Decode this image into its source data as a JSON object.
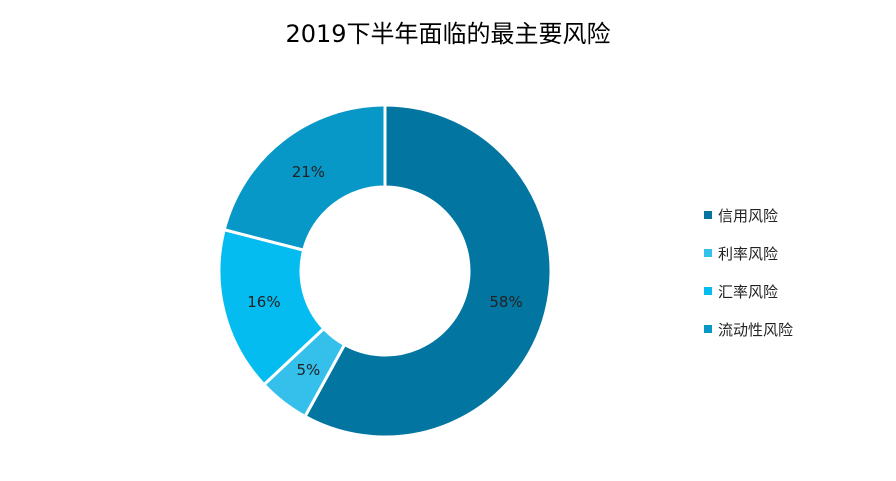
{
  "chart_data": {
    "type": "pie",
    "donut": true,
    "title": "2019下半年面临的最主要风险",
    "categories": [
      "信用风险",
      "利率风险",
      "汇率风险",
      "流动性风险"
    ],
    "values": [
      58,
      5,
      16,
      21
    ],
    "labels": [
      "58%",
      "5%",
      "16%",
      "21%"
    ],
    "colors": [
      "#0276a1",
      "#35c0ec",
      "#05bcf0",
      "#0798c8"
    ],
    "legend": "right"
  }
}
